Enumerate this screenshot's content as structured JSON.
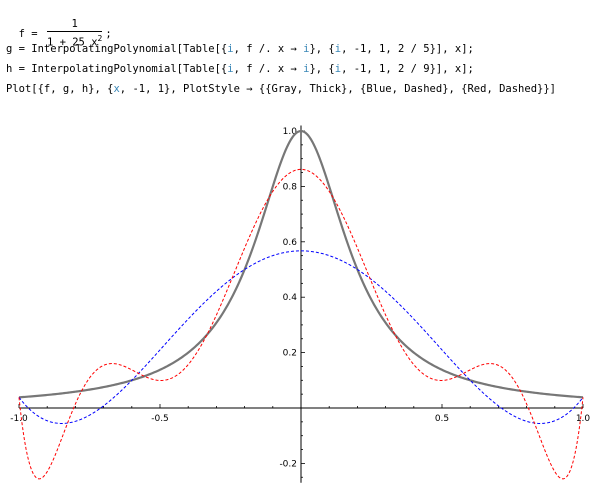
{
  "notebook": {
    "line_f": {
      "prefix": "f = ",
      "numerator": "1",
      "denominator_base": "1 + 25 x",
      "denominator_exp": "2",
      "suffix": ";"
    },
    "line_g": {
      "p1": "g = InterpolatingPolynomial[Table[{",
      "v1": "i",
      "p2": ", f /. x → ",
      "v2": "i",
      "p3": "}, {",
      "v3": "i",
      "p4": ", -1, 1, 2 / 5}], x];"
    },
    "line_h": {
      "p1": "h = InterpolatingPolynomial[Table[{",
      "v1": "i",
      "p2": ", f /. x → ",
      "v2": "i",
      "p3": "}, {",
      "v3": "i",
      "p4": ", -1, 1, 2 / 9}], x];"
    },
    "line_plot": {
      "p1": "Plot[{f, g, h}, {",
      "v1": "x",
      "p2": ", -1, 1}, PlotStyle → {{Gray, Thick}, {Blue, Dashed}, {Red, Dashed}}]"
    }
  },
  "chart_data": {
    "type": "line",
    "xlim": [
      -1,
      1
    ],
    "ylim": [
      -0.27,
      1.02
    ],
    "x_ticks": [
      -1.0,
      -0.5,
      0.5,
      1.0
    ],
    "x_tick_labels": [
      "-1.0",
      "-0.5",
      "0.5",
      "1.0"
    ],
    "y_ticks": [
      -0.2,
      0.2,
      0.4,
      0.6,
      0.8,
      1.0
    ],
    "y_tick_labels": [
      "-0.2",
      "0.2",
      "0.4",
      "0.6",
      "0.8",
      "1.0"
    ],
    "grid": false,
    "legend": "none",
    "series": [
      {
        "function": "1/(1+25x^2)",
        "color": "#777777",
        "style": "thick",
        "nodes": []
      },
      {
        "function": "InterpolatingPolynomial step 2/5",
        "color": "#0000ff",
        "style": "dashed",
        "nodes": [
          -1,
          -0.6,
          -0.2,
          0.2,
          0.6,
          1
        ]
      },
      {
        "function": "InterpolatingPolynomial step 2/9",
        "color": "#ff0000",
        "style": "dashed",
        "nodes": [
          -1,
          -0.7777778,
          -0.5555556,
          -0.3333333,
          -0.1111111,
          0.1111111,
          0.3333333,
          0.5555556,
          0.7777778,
          1
        ]
      }
    ]
  }
}
